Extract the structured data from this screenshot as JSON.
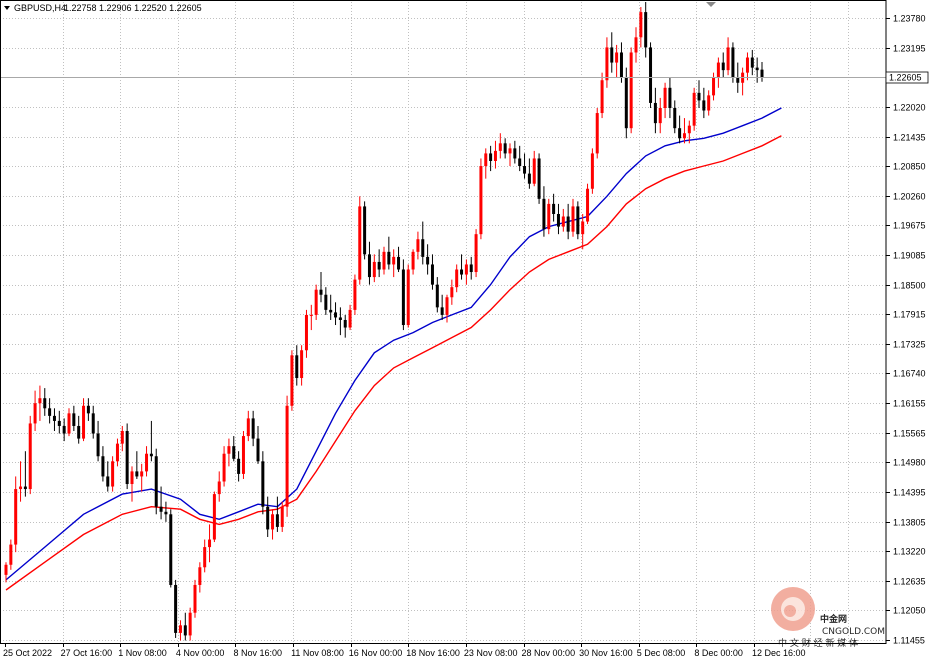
{
  "window": {
    "title_symbol": "GBPUSD,H4",
    "ohlc": "1.22758 1.22906 1.22520 1.22605"
  },
  "current_price": "1.22605",
  "watermark": {
    "brand": "中金网",
    "domain": "CNGOLD.COM",
    "slogan": "中 文 财 经 新 媒 体"
  },
  "colors": {
    "bull": "#ff0000",
    "bear": "#000000",
    "ma_fast": "#0000cc",
    "ma_slow": "#ff0000",
    "grid": "#c0c0c0"
  },
  "chart_data": {
    "type": "candlestick",
    "symbol": "GBPUSD",
    "timeframe": "H4",
    "ylim": [
      1.114,
      1.241
    ],
    "price_ticks": [
      "1.23780",
      "1.23195",
      "1.22020",
      "1.21435",
      "1.20850",
      "1.20260",
      "1.19675",
      "1.19085",
      "1.18500",
      "1.17915",
      "1.17325",
      "1.16740",
      "1.16155",
      "1.15565",
      "1.14980",
      "1.14395",
      "1.13805",
      "1.13220",
      "1.12635",
      "1.12050",
      "1.11455"
    ],
    "time_ticks": [
      "25 Oct 2022",
      "27 Oct 16:00",
      "1 Nov 08:00",
      "4 Nov 00:00",
      "8 Nov 16:00",
      "11 Nov 08:00",
      "16 Nov 00:00",
      "18 Nov 16:00",
      "23 Nov 08:00",
      "28 Nov 00:00",
      "30 Nov 16:00",
      "5 Dec 08:00",
      "8 Dec 00:00",
      "12 Dec 16:00"
    ],
    "candles": [
      [
        1.1275,
        1.13,
        1.126,
        1.1295
      ],
      [
        1.1295,
        1.1345,
        1.1285,
        1.1335
      ],
      [
        1.1335,
        1.147,
        1.132,
        1.1445
      ],
      [
        1.1445,
        1.15,
        1.142,
        1.145
      ],
      [
        1.145,
        1.152,
        1.143,
        1.1445
      ],
      [
        1.1445,
        1.159,
        1.1435,
        1.1575
      ],
      [
        1.1575,
        1.164,
        1.156,
        1.1615
      ],
      [
        1.1615,
        1.165,
        1.158,
        1.1625
      ],
      [
        1.1625,
        1.1645,
        1.159,
        1.1605
      ],
      [
        1.1605,
        1.1625,
        1.1575,
        1.159
      ],
      [
        1.159,
        1.1605,
        1.156,
        1.158
      ],
      [
        1.158,
        1.16,
        1.1555,
        1.157
      ],
      [
        1.157,
        1.1585,
        1.154,
        1.1555
      ],
      [
        1.1555,
        1.1605,
        1.155,
        1.1595
      ],
      [
        1.1595,
        1.161,
        1.156,
        1.157
      ],
      [
        1.157,
        1.159,
        1.1535,
        1.1545
      ],
      [
        1.1545,
        1.1625,
        1.154,
        1.161
      ],
      [
        1.161,
        1.1625,
        1.158,
        1.1595
      ],
      [
        1.1595,
        1.161,
        1.1545,
        1.1555
      ],
      [
        1.1555,
        1.158,
        1.15,
        1.151
      ],
      [
        1.151,
        1.153,
        1.146,
        1.147
      ],
      [
        1.147,
        1.15,
        1.144,
        1.145
      ],
      [
        1.145,
        1.151,
        1.144,
        1.15
      ],
      [
        1.15,
        1.1545,
        1.149,
        1.1535
      ],
      [
        1.1535,
        1.157,
        1.152,
        1.156
      ],
      [
        1.156,
        1.1575,
        1.1445,
        1.1455
      ],
      [
        1.1455,
        1.149,
        1.142,
        1.148
      ],
      [
        1.148,
        1.152,
        1.1465,
        1.147
      ],
      [
        1.147,
        1.1495,
        1.144,
        1.148
      ],
      [
        1.148,
        1.153,
        1.147,
        1.1515
      ],
      [
        1.1515,
        1.158,
        1.15,
        1.151
      ],
      [
        1.151,
        1.1525,
        1.1395,
        1.141
      ],
      [
        1.141,
        1.145,
        1.1385,
        1.14
      ],
      [
        1.14,
        1.142,
        1.138,
        1.1395
      ],
      [
        1.1395,
        1.1405,
        1.125,
        1.1255
      ],
      [
        1.1255,
        1.1265,
        1.115,
        1.116
      ],
      [
        1.116,
        1.1185,
        1.1145,
        1.1175
      ],
      [
        1.1175,
        1.12,
        1.1145,
        1.1155
      ],
      [
        1.1155,
        1.121,
        1.1145,
        1.12
      ],
      [
        1.12,
        1.1265,
        1.119,
        1.1255
      ],
      [
        1.1255,
        1.13,
        1.124,
        1.129
      ],
      [
        1.129,
        1.1345,
        1.128,
        1.133
      ],
      [
        1.133,
        1.1375,
        1.13,
        1.1345
      ],
      [
        1.1345,
        1.144,
        1.134,
        1.1435
      ],
      [
        1.1435,
        1.148,
        1.142,
        1.146
      ],
      [
        1.146,
        1.153,
        1.145,
        1.1515
      ],
      [
        1.1515,
        1.1545,
        1.149,
        1.153
      ],
      [
        1.153,
        1.155,
        1.15,
        1.1505
      ],
      [
        1.1505,
        1.152,
        1.146,
        1.1475
      ],
      [
        1.1475,
        1.156,
        1.1465,
        1.155
      ],
      [
        1.155,
        1.16,
        1.154,
        1.1585
      ],
      [
        1.1585,
        1.16,
        1.153,
        1.1545
      ],
      [
        1.1545,
        1.157,
        1.1495,
        1.15
      ],
      [
        1.15,
        1.152,
        1.1395,
        1.141
      ],
      [
        1.141,
        1.143,
        1.135,
        1.1365
      ],
      [
        1.1365,
        1.1405,
        1.1345,
        1.1395
      ],
      [
        1.1395,
        1.143,
        1.136,
        1.137
      ],
      [
        1.137,
        1.142,
        1.136,
        1.141
      ],
      [
        1.141,
        1.163,
        1.139,
        1.161
      ],
      [
        1.161,
        1.172,
        1.16,
        1.171
      ],
      [
        1.171,
        1.173,
        1.165,
        1.1665
      ],
      [
        1.1665,
        1.173,
        1.165,
        1.172
      ],
      [
        1.172,
        1.18,
        1.1705,
        1.179
      ],
      [
        1.179,
        1.181,
        1.176,
        1.179
      ],
      [
        1.179,
        1.185,
        1.178,
        1.184
      ],
      [
        1.184,
        1.1875,
        1.1815,
        1.183
      ],
      [
        1.183,
        1.1845,
        1.179,
        1.18
      ],
      [
        1.18,
        1.183,
        1.178,
        1.1795
      ],
      [
        1.1795,
        1.1815,
        1.177,
        1.1785
      ],
      [
        1.1785,
        1.1805,
        1.175,
        1.178
      ],
      [
        1.178,
        1.179,
        1.1745,
        1.1765
      ],
      [
        1.1765,
        1.181,
        1.176,
        1.18
      ],
      [
        1.18,
        1.187,
        1.179,
        1.186
      ],
      [
        1.186,
        1.2025,
        1.185,
        1.2005
      ],
      [
        1.2005,
        1.2015,
        1.19,
        1.191
      ],
      [
        1.191,
        1.1935,
        1.185,
        1.1865
      ],
      [
        1.1865,
        1.191,
        1.1855,
        1.1895
      ],
      [
        1.1895,
        1.192,
        1.1865,
        1.188
      ],
      [
        1.188,
        1.1925,
        1.187,
        1.1915
      ],
      [
        1.1915,
        1.1945,
        1.188,
        1.189
      ],
      [
        1.189,
        1.192,
        1.1865,
        1.1905
      ],
      [
        1.1905,
        1.1925,
        1.1875,
        1.188
      ],
      [
        1.188,
        1.19,
        1.176,
        1.177
      ],
      [
        1.177,
        1.189,
        1.1765,
        1.188
      ],
      [
        1.188,
        1.192,
        1.187,
        1.1915
      ],
      [
        1.1915,
        1.1955,
        1.19,
        1.194
      ],
      [
        1.194,
        1.1975,
        1.189,
        1.1905
      ],
      [
        1.1905,
        1.193,
        1.187,
        1.189
      ],
      [
        1.189,
        1.191,
        1.184,
        1.185
      ],
      [
        1.185,
        1.1865,
        1.1795,
        1.1805
      ],
      [
        1.1805,
        1.183,
        1.178,
        1.179
      ],
      [
        1.179,
        1.183,
        1.1775,
        1.1825
      ],
      [
        1.1825,
        1.186,
        1.181,
        1.1845
      ],
      [
        1.1845,
        1.189,
        1.1835,
        1.188
      ],
      [
        1.188,
        1.191,
        1.186,
        1.187
      ],
      [
        1.187,
        1.19,
        1.185,
        1.189
      ],
      [
        1.189,
        1.1905,
        1.186,
        1.1875
      ],
      [
        1.1875,
        1.196,
        1.1865,
        1.195
      ],
      [
        1.195,
        1.21,
        1.194,
        1.2085
      ],
      [
        1.2085,
        1.212,
        1.206,
        1.211
      ],
      [
        1.211,
        1.2125,
        1.2075,
        1.2095
      ],
      [
        1.2095,
        1.2135,
        1.208,
        1.2115
      ],
      [
        1.2115,
        1.215,
        1.21,
        1.213
      ],
      [
        1.213,
        1.214,
        1.21,
        1.211
      ],
      [
        1.211,
        1.213,
        1.2085,
        1.212
      ],
      [
        1.212,
        1.2135,
        1.209,
        1.21
      ],
      [
        1.21,
        1.2125,
        1.2075,
        1.2085
      ],
      [
        1.2085,
        1.211,
        1.206,
        1.207
      ],
      [
        1.207,
        1.21,
        1.204,
        1.205
      ],
      [
        1.205,
        1.2115,
        1.2045,
        1.21
      ],
      [
        1.21,
        1.211,
        1.201,
        1.202
      ],
      [
        1.202,
        1.2045,
        1.1945,
        1.196
      ],
      [
        1.196,
        1.202,
        1.195,
        1.201
      ],
      [
        1.201,
        1.203,
        1.1975,
        1.199
      ],
      [
        1.199,
        1.201,
        1.195,
        1.1965
      ],
      [
        1.1965,
        1.2,
        1.1955,
        1.1985
      ],
      [
        1.1985,
        1.201,
        1.194,
        1.1955
      ],
      [
        1.1955,
        1.202,
        1.1945,
        1.2005
      ],
      [
        1.2005,
        1.2015,
        1.194,
        1.195
      ],
      [
        1.195,
        1.199,
        1.192,
        1.1975
      ],
      [
        1.1975,
        1.205,
        1.197,
        1.204
      ],
      [
        1.204,
        1.212,
        1.203,
        1.211
      ],
      [
        1.211,
        1.22,
        1.21,
        1.219
      ],
      [
        1.219,
        1.227,
        1.218,
        1.2255
      ],
      [
        1.2255,
        1.234,
        1.224,
        1.232
      ],
      [
        1.232,
        1.235,
        1.227,
        1.229
      ],
      [
        1.229,
        1.2325,
        1.226,
        1.231
      ],
      [
        1.231,
        1.233,
        1.225,
        1.226
      ],
      [
        1.226,
        1.228,
        1.214,
        1.216
      ],
      [
        1.216,
        1.232,
        1.215,
        1.231
      ],
      [
        1.231,
        1.236,
        1.229,
        1.234
      ],
      [
        1.234,
        1.24,
        1.232,
        1.239
      ],
      [
        1.239,
        1.241,
        1.23,
        1.232
      ],
      [
        1.232,
        1.233,
        1.22,
        1.221
      ],
      [
        1.221,
        1.224,
        1.215,
        1.217
      ],
      [
        1.217,
        1.222,
        1.215,
        1.22
      ],
      [
        1.22,
        1.225,
        1.218,
        1.224
      ],
      [
        1.224,
        1.226,
        1.218,
        1.22
      ],
      [
        1.22,
        1.2215,
        1.215,
        1.216
      ],
      [
        1.216,
        1.2185,
        1.213,
        1.214
      ],
      [
        1.214,
        1.218,
        1.213,
        1.215
      ],
      [
        1.215,
        1.2175,
        1.213,
        1.2165
      ],
      [
        1.2165,
        1.224,
        1.2155,
        1.223
      ],
      [
        1.223,
        1.2255,
        1.22,
        1.2215
      ],
      [
        1.2215,
        1.224,
        1.218,
        1.2195
      ],
      [
        1.2195,
        1.2235,
        1.2185,
        1.2225
      ],
      [
        1.2225,
        1.227,
        1.2215,
        1.226
      ],
      [
        1.226,
        1.23,
        1.224,
        1.229
      ],
      [
        1.229,
        1.231,
        1.226,
        1.2275
      ],
      [
        1.2275,
        1.234,
        1.2265,
        1.232
      ],
      [
        1.232,
        1.233,
        1.225,
        1.226
      ],
      [
        1.226,
        1.229,
        1.223,
        1.225
      ],
      [
        1.225,
        1.228,
        1.2225,
        1.227
      ],
      [
        1.227,
        1.231,
        1.2255,
        1.23
      ],
      [
        1.23,
        1.2315,
        1.2265,
        1.228
      ],
      [
        1.228,
        1.23,
        1.225,
        1.2275
      ],
      [
        1.2276,
        1.2291,
        1.2252,
        1.2261
      ]
    ],
    "ma_fast": {
      "period_note": "",
      "points": [
        [
          0,
          1.1265
        ],
        [
          8,
          1.133
        ],
        [
          16,
          1.1395
        ],
        [
          24,
          1.1435
        ],
        [
          30,
          1.1445
        ],
        [
          36,
          1.1425
        ],
        [
          40,
          1.1395
        ],
        [
          44,
          1.1385
        ],
        [
          48,
          1.14
        ],
        [
          52,
          1.1415
        ],
        [
          56,
          1.141
        ],
        [
          60,
          1.1445
        ],
        [
          64,
          1.152
        ],
        [
          68,
          1.1595
        ],
        [
          72,
          1.166
        ],
        [
          76,
          1.1715
        ],
        [
          80,
          1.174
        ],
        [
          84,
          1.1755
        ],
        [
          88,
          1.1775
        ],
        [
          92,
          1.179
        ],
        [
          96,
          1.1805
        ],
        [
          100,
          1.185
        ],
        [
          104,
          1.1905
        ],
        [
          108,
          1.1945
        ],
        [
          112,
          1.1965
        ],
        [
          116,
          1.1975
        ],
        [
          120,
          1.1985
        ],
        [
          124,
          1.2025
        ],
        [
          128,
          1.207
        ],
        [
          132,
          1.2105
        ],
        [
          136,
          1.2125
        ],
        [
          140,
          1.2135
        ],
        [
          144,
          1.214
        ],
        [
          148,
          1.215
        ],
        [
          152,
          1.2165
        ],
        [
          156,
          1.218
        ],
        [
          160,
          1.22
        ]
      ]
    },
    "ma_slow": {
      "period_note": "",
      "points": [
        [
          0,
          1.1245
        ],
        [
          8,
          1.13
        ],
        [
          16,
          1.1355
        ],
        [
          24,
          1.1395
        ],
        [
          30,
          1.141
        ],
        [
          36,
          1.1405
        ],
        [
          40,
          1.1385
        ],
        [
          44,
          1.1375
        ],
        [
          48,
          1.1385
        ],
        [
          52,
          1.14
        ],
        [
          56,
          1.1405
        ],
        [
          60,
          1.1425
        ],
        [
          64,
          1.148
        ],
        [
          68,
          1.154
        ],
        [
          72,
          1.16
        ],
        [
          76,
          1.165
        ],
        [
          80,
          1.1685
        ],
        [
          84,
          1.1705
        ],
        [
          88,
          1.1725
        ],
        [
          92,
          1.1745
        ],
        [
          96,
          1.1765
        ],
        [
          100,
          1.18
        ],
        [
          104,
          1.184
        ],
        [
          108,
          1.1875
        ],
        [
          112,
          1.19
        ],
        [
          116,
          1.1915
        ],
        [
          120,
          1.193
        ],
        [
          124,
          1.1965
        ],
        [
          128,
          1.201
        ],
        [
          132,
          1.204
        ],
        [
          136,
          1.206
        ],
        [
          140,
          1.2075
        ],
        [
          144,
          1.2085
        ],
        [
          148,
          1.2095
        ],
        [
          152,
          1.211
        ],
        [
          156,
          1.2125
        ],
        [
          160,
          1.2145
        ]
      ]
    }
  }
}
